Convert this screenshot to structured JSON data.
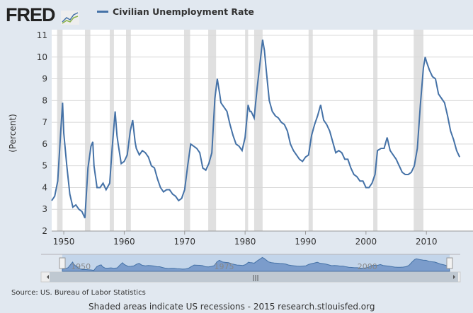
{
  "header": {
    "logo": "FRED",
    "legend_label": "Civilian Unemployment Rate"
  },
  "footer": {
    "source": "Source: US. Bureau of Labor Statistics",
    "note": "Shaded areas indicate US recessions - 2015 research.stlouisfed.org"
  },
  "navigator": {
    "labels": [
      "1950",
      "1975",
      "2000"
    ]
  },
  "colors": {
    "line": "#4572a7",
    "recession": "#e0e0e0",
    "navigator_fill": "#c3d5ea"
  },
  "chart_data": {
    "type": "line",
    "title": "Civilian Unemployment Rate",
    "ylabel": "(Percent)",
    "xlabel": "",
    "ylim": [
      2,
      11
    ],
    "xlim": [
      1948,
      2015.6
    ],
    "yticks": [
      "2",
      "3",
      "4",
      "5",
      "6",
      "7",
      "8",
      "9",
      "10",
      "11"
    ],
    "xticks": [
      "1950",
      "1960",
      "1970",
      "1980",
      "1990",
      "2000",
      "2010"
    ],
    "recessions": [
      [
        1948.9,
        1949.8
      ],
      [
        1953.5,
        1954.4
      ],
      [
        1957.6,
        1958.3
      ],
      [
        1960.3,
        1961.1
      ],
      [
        1969.9,
        1970.9
      ],
      [
        1973.9,
        1975.2
      ],
      [
        1980.0,
        1980.5
      ],
      [
        1981.5,
        1982.9
      ],
      [
        1990.5,
        1991.2
      ],
      [
        2001.2,
        2001.9
      ],
      [
        2007.9,
        2009.5
      ]
    ],
    "series": [
      {
        "name": "Civilian Unemployment Rate",
        "x": [
          1948.0,
          1948.5,
          1949.0,
          1949.5,
          1949.8,
          1950.0,
          1950.5,
          1951.0,
          1951.5,
          1952.0,
          1952.5,
          1953.0,
          1953.5,
          1954.0,
          1954.5,
          1954.8,
          1955.0,
          1955.5,
          1956.0,
          1956.5,
          1957.0,
          1957.6,
          1958.0,
          1958.5,
          1958.8,
          1959.0,
          1959.5,
          1960.0,
          1960.5,
          1961.0,
          1961.4,
          1961.8,
          1962.0,
          1962.5,
          1963.0,
          1963.5,
          1964.0,
          1964.5,
          1965.0,
          1965.5,
          1966.0,
          1966.5,
          1967.0,
          1967.5,
          1968.0,
          1968.5,
          1969.0,
          1969.5,
          1970.0,
          1970.5,
          1971.0,
          1971.5,
          1972.0,
          1972.5,
          1973.0,
          1973.5,
          1974.0,
          1974.5,
          1975.0,
          1975.4,
          1975.8,
          1976.0,
          1976.5,
          1977.0,
          1977.5,
          1978.0,
          1978.5,
          1979.0,
          1979.5,
          1980.0,
          1980.5,
          1980.8,
          1981.0,
          1981.5,
          1982.0,
          1982.5,
          1982.9,
          1983.2,
          1983.5,
          1984.0,
          1984.5,
          1985.0,
          1985.5,
          1986.0,
          1986.5,
          1987.0,
          1987.5,
          1988.0,
          1988.5,
          1989.0,
          1989.5,
          1990.0,
          1990.5,
          1991.0,
          1991.5,
          1992.0,
          1992.5,
          1993.0,
          1993.5,
          1994.0,
          1994.5,
          1995.0,
          1995.5,
          1996.0,
          1996.5,
          1997.0,
          1997.5,
          1998.0,
          1998.5,
          1999.0,
          1999.5,
          2000.0,
          2000.5,
          2001.0,
          2001.5,
          2001.9,
          2002.5,
          2003.0,
          2003.5,
          2004.0,
          2004.5,
          2005.0,
          2005.5,
          2006.0,
          2006.5,
          2007.0,
          2007.5,
          2008.0,
          2008.5,
          2009.0,
          2009.5,
          2009.8,
          2010.0,
          2010.5,
          2011.0,
          2011.5,
          2012.0,
          2012.5,
          2013.0,
          2013.5,
          2014.0,
          2014.5,
          2015.0,
          2015.5
        ],
        "y": [
          3.4,
          3.6,
          4.3,
          6.6,
          7.9,
          6.5,
          5.0,
          3.7,
          3.1,
          3.2,
          3.0,
          2.9,
          2.6,
          4.9,
          5.9,
          6.1,
          5.0,
          4.0,
          4.0,
          4.2,
          3.9,
          4.2,
          5.8,
          7.5,
          6.4,
          6.0,
          5.1,
          5.2,
          5.5,
          6.6,
          7.1,
          6.1,
          5.8,
          5.5,
          5.7,
          5.6,
          5.4,
          5.0,
          4.9,
          4.4,
          4.0,
          3.8,
          3.9,
          3.9,
          3.7,
          3.6,
          3.4,
          3.5,
          3.9,
          5.0,
          6.0,
          5.9,
          5.8,
          5.6,
          4.9,
          4.8,
          5.1,
          5.6,
          8.1,
          9.0,
          8.3,
          7.9,
          7.7,
          7.5,
          6.9,
          6.4,
          6.0,
          5.9,
          5.7,
          6.3,
          7.8,
          7.5,
          7.5,
          7.2,
          8.6,
          9.8,
          10.8,
          10.3,
          9.4,
          8.0,
          7.5,
          7.3,
          7.2,
          7.0,
          6.9,
          6.6,
          6.0,
          5.7,
          5.5,
          5.3,
          5.2,
          5.4,
          5.5,
          6.4,
          6.9,
          7.3,
          7.8,
          7.1,
          6.9,
          6.6,
          6.1,
          5.6,
          5.7,
          5.6,
          5.3,
          5.3,
          4.9,
          4.6,
          4.5,
          4.3,
          4.3,
          4.0,
          4.0,
          4.2,
          4.6,
          5.7,
          5.8,
          5.8,
          6.3,
          5.7,
          5.5,
          5.3,
          5.0,
          4.7,
          4.6,
          4.6,
          4.7,
          5.0,
          5.8,
          7.8,
          9.5,
          10.0,
          9.8,
          9.4,
          9.1,
          9.0,
          8.3,
          8.1,
          7.9,
          7.3,
          6.6,
          6.2,
          5.7,
          5.4
        ]
      }
    ]
  }
}
